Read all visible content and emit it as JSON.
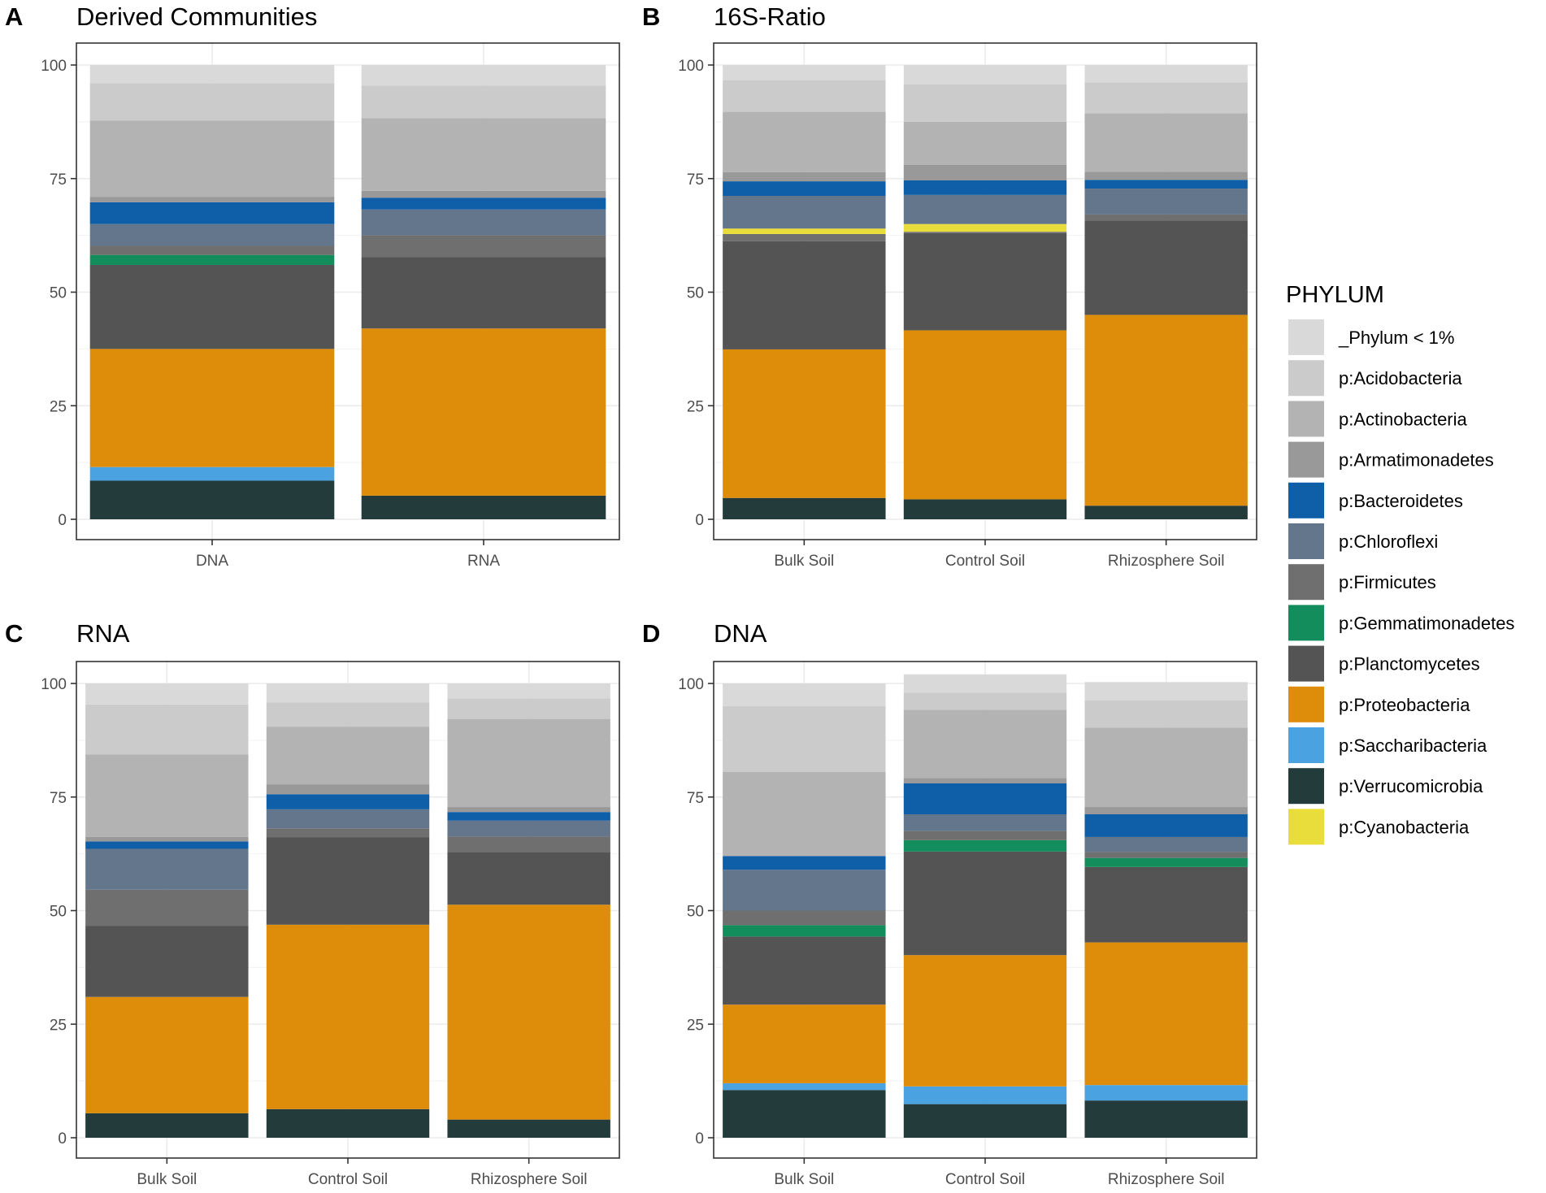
{
  "legend": {
    "title": "PHYLUM",
    "entries": [
      {
        "name": "_Phylum < 1%",
        "color": "#d9d9d9"
      },
      {
        "name": "p:Acidobacteria",
        "color": "#cbcbcb"
      },
      {
        "name": "p:Actinobacteria",
        "color": "#b3b3b3"
      },
      {
        "name": "p:Armatimonadetes",
        "color": "#999999"
      },
      {
        "name": "p:Bacteroidetes",
        "color": "#0f5ea8"
      },
      {
        "name": "p:Chloroflexi",
        "color": "#63768b"
      },
      {
        "name": "p:Firmicutes",
        "color": "#6f6f6f"
      },
      {
        "name": "p:Gemmatimonadetes",
        "color": "#138d5c"
      },
      {
        "name": "p:Planctomycetes",
        "color": "#545454"
      },
      {
        "name": "p:Proteobacteria",
        "color": "#de8d0b"
      },
      {
        "name": "p:Saccharibacteria",
        "color": "#4aa3e0"
      },
      {
        "name": "p:Verrucomicrobia",
        "color": "#233b3b"
      },
      {
        "name": "p:Cyanobacteria",
        "color": "#e8dd3a"
      }
    ]
  },
  "chart_data": [
    {
      "type": "bar",
      "stacked": true,
      "panel": "A",
      "title": "Derived Communities",
      "categories": [
        "DNA",
        "RNA"
      ],
      "ylim": [
        0,
        100
      ],
      "yticks": [
        "0",
        "25",
        "50",
        "75",
        "100"
      ],
      "series": [
        {
          "name": "p:Verrucomicrobia",
          "values": [
            8.5,
            5.2
          ]
        },
        {
          "name": "p:Saccharibacteria",
          "values": [
            3.0,
            0
          ]
        },
        {
          "name": "p:Proteobacteria",
          "values": [
            26.0,
            36.8
          ]
        },
        {
          "name": "p:Planctomycetes",
          "values": [
            18.5,
            15.7
          ]
        },
        {
          "name": "p:Gemmatimonadetes",
          "values": [
            2.2,
            0
          ]
        },
        {
          "name": "p:Firmicutes",
          "values": [
            2.0,
            4.8
          ]
        },
        {
          "name": "p:Chloroflexi",
          "values": [
            4.8,
            5.7
          ]
        },
        {
          "name": "p:Bacteroidetes",
          "values": [
            4.8,
            2.6
          ]
        },
        {
          "name": "p:Cyanobacteria",
          "values": [
            0,
            0
          ]
        },
        {
          "name": "p:Armatimonadetes",
          "values": [
            1.2,
            1.5
          ]
        },
        {
          "name": "p:Actinobacteria",
          "values": [
            16.8,
            16.0
          ]
        },
        {
          "name": "p:Acidobacteria",
          "values": [
            8.2,
            7.2
          ]
        },
        {
          "name": "_Phylum < 1%",
          "values": [
            4.0,
            4.5
          ]
        }
      ]
    },
    {
      "type": "bar",
      "stacked": true,
      "panel": "B",
      "title": "16S-Ratio",
      "categories": [
        "Bulk Soil",
        "Control Soil",
        "Rhizosphere Soil"
      ],
      "ylim": [
        0,
        100
      ],
      "yticks": [
        "0",
        "25",
        "50",
        "75",
        "100"
      ],
      "series": [
        {
          "name": "p:Verrucomicrobia",
          "values": [
            4.7,
            4.4,
            3.0
          ]
        },
        {
          "name": "p:Saccharibacteria",
          "values": [
            0,
            0,
            0
          ]
        },
        {
          "name": "p:Proteobacteria",
          "values": [
            32.7,
            37.2,
            42.0
          ]
        },
        {
          "name": "p:Planctomycetes",
          "values": [
            23.8,
            21.4,
            20.8
          ]
        },
        {
          "name": "p:Gemmatimonadetes",
          "values": [
            0,
            0,
            0
          ]
        },
        {
          "name": "p:Firmicutes",
          "values": [
            1.6,
            0.3,
            1.3
          ]
        },
        {
          "name": "p:Cyanobacteria",
          "values": [
            1.2,
            1.7,
            0
          ]
        },
        {
          "name": "p:Chloroflexi",
          "values": [
            7.2,
            6.4,
            5.7
          ]
        },
        {
          "name": "p:Bacteroidetes",
          "values": [
            3.2,
            3.2,
            1.9
          ]
        },
        {
          "name": "p:Armatimonadetes",
          "values": [
            2.0,
            3.4,
            1.8
          ]
        },
        {
          "name": "p:Actinobacteria",
          "values": [
            13.3,
            9.5,
            12.9
          ]
        },
        {
          "name": "p:Acidobacteria",
          "values": [
            6.9,
            8.2,
            6.8
          ]
        },
        {
          "name": "_Phylum < 1%",
          "values": [
            3.4,
            4.3,
            3.8
          ]
        }
      ]
    },
    {
      "type": "bar",
      "stacked": true,
      "panel": "C",
      "title": "RNA",
      "categories": [
        "Bulk Soil",
        "Control Soil",
        "Rhizosphere Soil"
      ],
      "ylim": [
        0,
        100
      ],
      "yticks": [
        "0",
        "25",
        "50",
        "75",
        "100"
      ],
      "series": [
        {
          "name": "p:Verrucomicrobia",
          "values": [
            5.4,
            6.3,
            4.0
          ]
        },
        {
          "name": "p:Saccharibacteria",
          "values": [
            0,
            0,
            0
          ]
        },
        {
          "name": "p:Proteobacteria",
          "values": [
            25.6,
            40.6,
            47.3
          ]
        },
        {
          "name": "p:Planctomycetes",
          "values": [
            15.6,
            19.2,
            11.6
          ]
        },
        {
          "name": "p:Gemmatimonadetes",
          "values": [
            0,
            0,
            0
          ]
        },
        {
          "name": "p:Firmicutes",
          "values": [
            8.0,
            2.0,
            3.4
          ]
        },
        {
          "name": "p:Chloroflexi",
          "values": [
            9.0,
            4.2,
            3.5
          ]
        },
        {
          "name": "p:Bacteroidetes",
          "values": [
            1.6,
            3.3,
            1.9
          ]
        },
        {
          "name": "p:Cyanobacteria",
          "values": [
            0,
            0,
            0
          ]
        },
        {
          "name": "p:Armatimonadetes",
          "values": [
            1.0,
            2.2,
            1.1
          ]
        },
        {
          "name": "p:Actinobacteria",
          "values": [
            18.2,
            12.7,
            19.4
          ]
        },
        {
          "name": "p:Acidobacteria",
          "values": [
            11.0,
            5.3,
            4.5
          ]
        },
        {
          "name": "_Phylum < 1%",
          "values": [
            4.6,
            4.2,
            3.3
          ]
        }
      ]
    },
    {
      "type": "bar",
      "stacked": true,
      "panel": "D",
      "title": "DNA",
      "categories": [
        "Bulk Soil",
        "Control Soil",
        "Rhizosphere Soil"
      ],
      "ylim": [
        0,
        100
      ],
      "yticks": [
        "0",
        "25",
        "50",
        "75",
        "100"
      ],
      "series": [
        {
          "name": "p:Verrucomicrobia",
          "values": [
            10.5,
            7.4,
            8.2
          ]
        },
        {
          "name": "p:Saccharibacteria",
          "values": [
            1.5,
            3.9,
            3.4
          ]
        },
        {
          "name": "p:Proteobacteria",
          "values": [
            17.3,
            28.9,
            31.4
          ]
        },
        {
          "name": "p:Planctomycetes",
          "values": [
            15.0,
            22.8,
            16.6
          ]
        },
        {
          "name": "p:Gemmatimonadetes",
          "values": [
            2.5,
            2.5,
            2.0
          ]
        },
        {
          "name": "p:Firmicutes",
          "values": [
            3.2,
            2.0,
            1.3
          ]
        },
        {
          "name": "p:Chloroflexi",
          "values": [
            9.0,
            3.7,
            3.3
          ]
        },
        {
          "name": "p:Bacteroidetes",
          "values": [
            3.0,
            6.8,
            5.0
          ]
        },
        {
          "name": "p:Cyanobacteria",
          "values": [
            0,
            0,
            0
          ]
        },
        {
          "name": "p:Armatimonadetes",
          "values": [
            0,
            1.2,
            1.6
          ]
        },
        {
          "name": "p:Actinobacteria",
          "values": [
            18.5,
            15.0,
            17.5
          ]
        },
        {
          "name": "p:Acidobacteria",
          "values": [
            14.5,
            3.8,
            6.0
          ]
        },
        {
          "name": "_Phylum < 1%",
          "values": [
            5.0,
            4.0,
            4.0
          ]
        }
      ]
    }
  ]
}
